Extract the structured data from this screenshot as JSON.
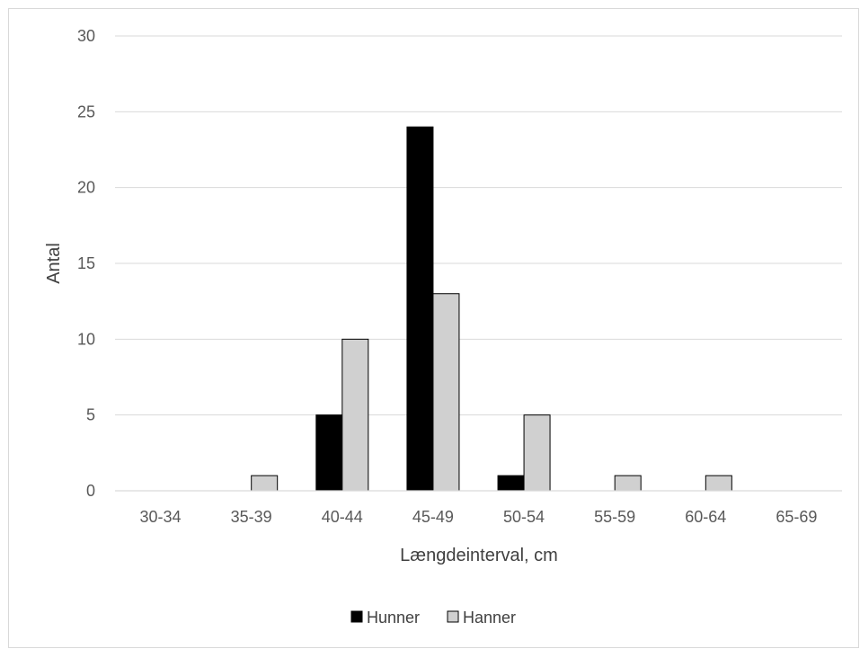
{
  "chart_data": {
    "type": "bar",
    "categories": [
      "30-34",
      "35-39",
      "40-44",
      "45-49",
      "50-54",
      "55-59",
      "60-64",
      "65-69"
    ],
    "series": [
      {
        "name": "Hunner",
        "values": [
          0,
          0,
          5,
          24,
          1,
          0,
          0,
          0
        ],
        "color": "#000000"
      },
      {
        "name": "Hanner",
        "values": [
          0,
          1,
          10,
          13,
          5,
          1,
          1,
          0
        ],
        "color": "#d0d0d0"
      }
    ],
    "y_ticks": [
      0,
      5,
      10,
      15,
      20,
      25,
      30
    ],
    "ylim": [
      0,
      30
    ],
    "xlabel": "Længdeinterval, cm",
    "ylabel": "Antal",
    "grid": true,
    "legend_position": "bottom",
    "gridline_color": "#d9d9d9",
    "bar_outline_color": "#000000"
  }
}
